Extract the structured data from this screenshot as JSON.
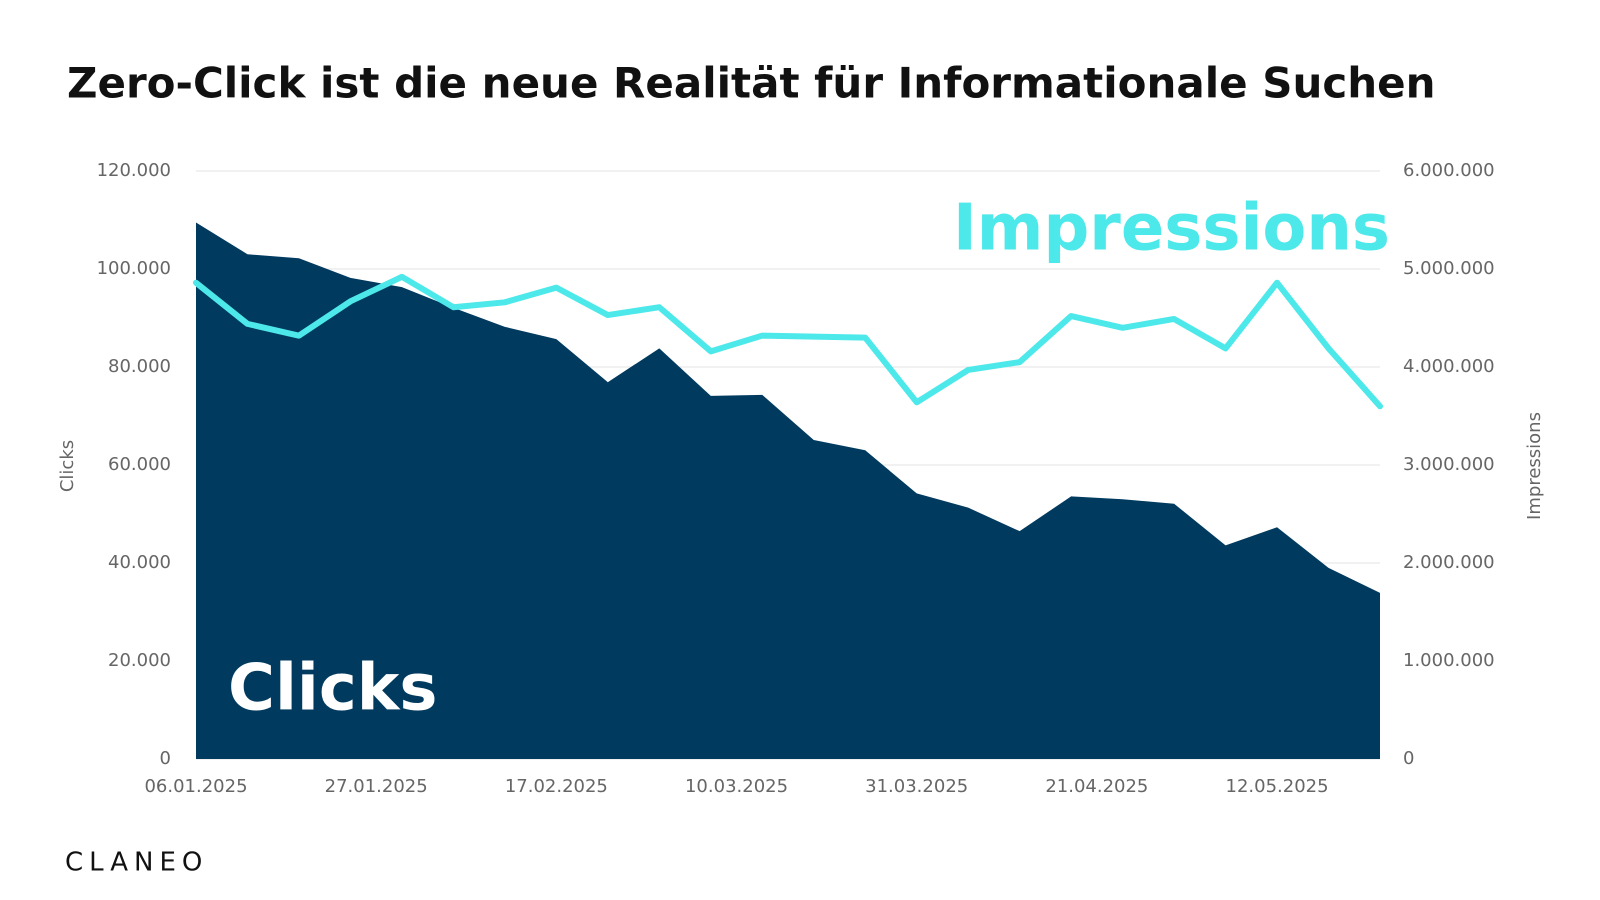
{
  "chart_data": {
    "type": "area_line",
    "title": "Zero-Click ist die neue Realität für Informationale Suchen",
    "ylabel": "Clicks",
    "y2label": "Impressions",
    "brand": "CLANEO",
    "xlim": [
      0,
      23
    ],
    "xticks": [
      {
        "value": 0,
        "label": "06.01.2025"
      },
      {
        "value": 3.5,
        "label": "27.01.2025"
      },
      {
        "value": 7,
        "label": "17.02.2025"
      },
      {
        "value": 10.5,
        "label": "10.03.2025"
      },
      {
        "value": 14,
        "label": "31.03.2025"
      },
      {
        "value": 17.5,
        "label": "21.04.2025"
      },
      {
        "value": 21,
        "label": "12.05.2025"
      }
    ],
    "ylim": [
      0,
      120000
    ],
    "yticks": [
      0,
      {
        "value": 20000,
        "label": "20.000"
      },
      {
        "value": 40000,
        "label": "40.000"
      },
      {
        "value": 60000,
        "label": "60.000"
      },
      {
        "value": 80000,
        "label": "80.000"
      },
      {
        "value": 100000,
        "label": "100.000"
      },
      {
        "value": 120000,
        "label": "120.000"
      }
    ],
    "y2lim": [
      0,
      6000000
    ],
    "y2ticks": [
      0,
      {
        "value": 1000000,
        "label": "1.000.000"
      },
      {
        "value": 2000000,
        "label": "2.000.000"
      },
      {
        "value": 3000000,
        "label": "3.000.000"
      },
      {
        "value": 4000000,
        "label": "4.000.000"
      },
      {
        "value": 5000000,
        "label": "5.000.000"
      },
      {
        "value": 6000000,
        "label": "6.000.000"
      }
    ],
    "grid": true,
    "series": [
      {
        "name": "Clicks",
        "color": "#003a5f",
        "kind": "area",
        "values": [
          109500,
          103000,
          102200,
          98200,
          96300,
          92100,
          88200,
          85700,
          76900,
          83800,
          74100,
          74300,
          65100,
          63000,
          54200,
          51300,
          46500,
          53600,
          53000,
          52100,
          43600,
          47300,
          39000,
          33900
        ]
      },
      {
        "name": "Impressions",
        "color": "#4de8ea",
        "kind": "line",
        "axis": "y2",
        "values": [
          4860000,
          4440000,
          4320000,
          4670000,
          4920000,
          4610000,
          4660000,
          4810000,
          4530000,
          4610000,
          4160000,
          4320000,
          4310000,
          4300000,
          3640000,
          3970000,
          4050000,
          4520000,
          4400000,
          4490000,
          4190000,
          4860000,
          4190000,
          3600000
        ]
      }
    ]
  }
}
